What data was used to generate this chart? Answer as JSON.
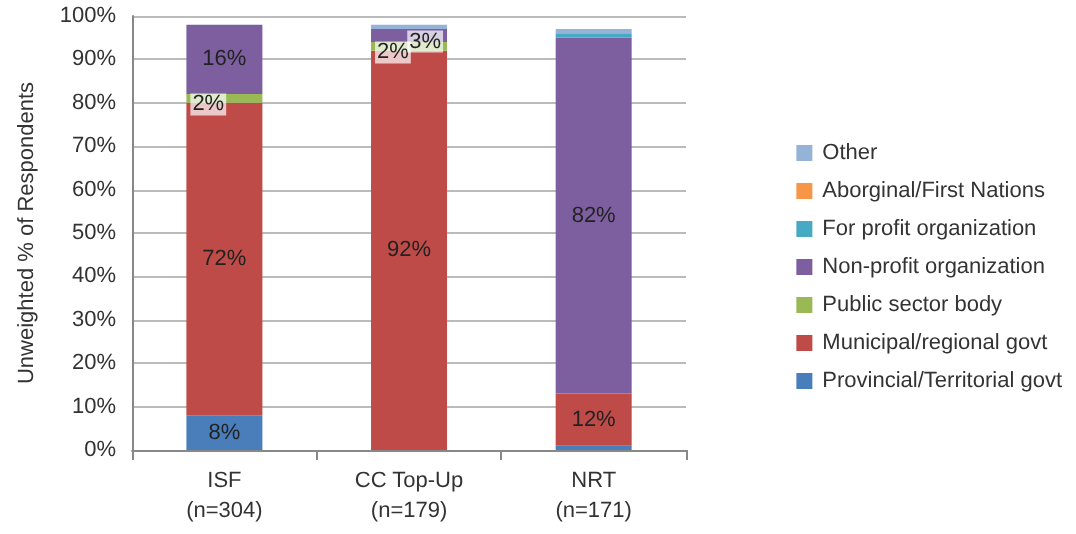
{
  "chart_data": {
    "type": "bar",
    "stacked": true,
    "ylabel": "Unweighted % of Respondents",
    "categories": [
      "ISF\n(n=304)",
      "CC Top-Up\n(n=179)",
      "NRT\n(n=171)"
    ],
    "series": [
      {
        "name": "Provincial/Territorial govt",
        "color": "#4a7ebb",
        "values": [
          8,
          0,
          1
        ],
        "value_labels": [
          "8%",
          null,
          null
        ]
      },
      {
        "name": "Municipal/regional govt",
        "color": "#be4b48",
        "values": [
          72,
          92,
          12
        ],
        "value_labels": [
          "72%",
          "92%",
          "12%"
        ]
      },
      {
        "name": "Public sector body",
        "color": "#98b954",
        "values": [
          2,
          2,
          0
        ],
        "value_labels": [
          "2%",
          "2%",
          null
        ]
      },
      {
        "name": "Non-profit organization",
        "color": "#7d5fa0",
        "values": [
          16,
          3,
          82
        ],
        "value_labels": [
          "16%",
          "3%",
          "82%"
        ]
      },
      {
        "name": "For profit organization",
        "color": "#46aac5",
        "values": [
          0,
          0,
          1
        ],
        "value_labels": [
          null,
          null,
          null
        ]
      },
      {
        "name": "Aborginal/First Nations",
        "color": "#f79646",
        "values": [
          0,
          0,
          0
        ],
        "value_labels": [
          null,
          null,
          null
        ]
      },
      {
        "name": "Other",
        "color": "#95b3d7",
        "values": [
          0,
          1,
          1
        ],
        "value_labels": [
          null,
          null,
          null
        ]
      }
    ],
    "ylim": [
      0,
      100
    ],
    "yticks": [
      {
        "value": 0,
        "label": "0%"
      },
      {
        "value": 10,
        "label": "10%"
      },
      {
        "value": 20,
        "label": "20%"
      },
      {
        "value": 30,
        "label": "30%"
      },
      {
        "value": 40,
        "label": "40%"
      },
      {
        "value": 50,
        "label": "50%"
      },
      {
        "value": 60,
        "label": "60%"
      },
      {
        "value": 70,
        "label": "70%"
      },
      {
        "value": 80,
        "label": "80%"
      },
      {
        "value": 90,
        "label": "90%"
      },
      {
        "value": 100,
        "label": "100%"
      }
    ],
    "grid": "y",
    "legend": "right"
  }
}
